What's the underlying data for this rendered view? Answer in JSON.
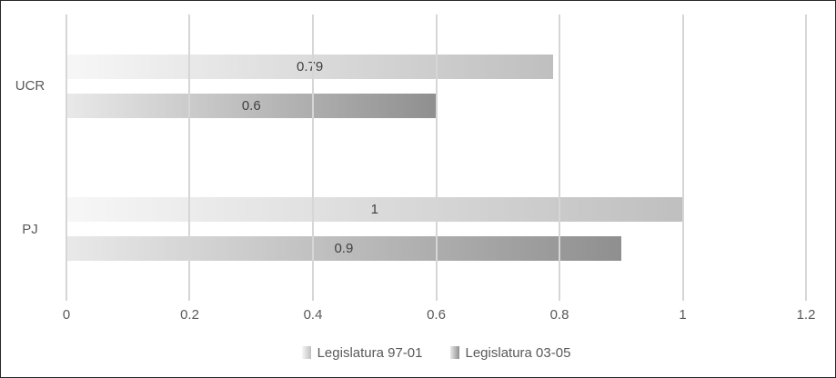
{
  "chart_data": {
    "type": "bar",
    "orientation": "horizontal",
    "categories": [
      "UCR",
      "PJ"
    ],
    "series": [
      {
        "name": "Legislatura 97-01",
        "values": [
          0.79,
          1
        ],
        "labels": [
          "0.79",
          "1"
        ],
        "gradient_start": "#f7f7f7",
        "gradient_end": "#bfbfbf"
      },
      {
        "name": "Legislatura 03-05",
        "values": [
          0.6,
          0.9
        ],
        "labels": [
          "0.6",
          "0.9"
        ],
        "gradient_start": "#e9e9e9",
        "gradient_end": "#8f8f8f"
      }
    ],
    "xlim": [
      0,
      1.2
    ],
    "xticks": [
      0,
      0.2,
      0.4,
      0.6,
      0.8,
      1,
      1.2
    ],
    "xtick_labels": [
      "0",
      "0.2",
      "0.4",
      "0.6",
      "0.8",
      "1",
      "1.2"
    ],
    "grid": true,
    "legend_position": "bottom",
    "colors": {
      "gridline": "#d6d6d6",
      "axis_text": "#595959",
      "data_label": "#404040",
      "frame_border": "#262626",
      "background": "#ffffff"
    }
  }
}
